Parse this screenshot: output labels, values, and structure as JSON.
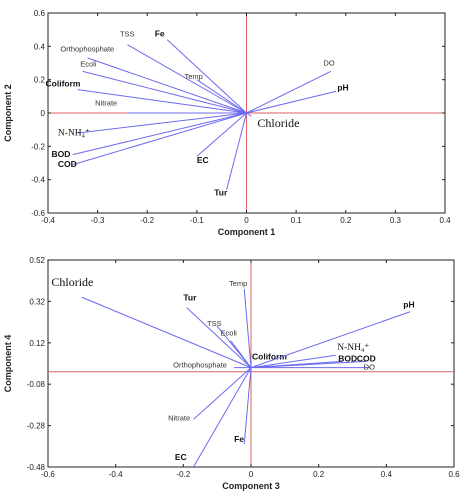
{
  "chart_data": [
    {
      "type": "biplot",
      "xlabel": "Component 1",
      "ylabel": "Component 2",
      "xlim": [
        -0.4,
        0.4
      ],
      "ylim": [
        -0.6,
        0.6
      ],
      "xticks": [
        -0.4,
        -0.3,
        -0.2,
        -0.1,
        0,
        0.1,
        0.2,
        0.3,
        0.4
      ],
      "yticks": [
        -0.6,
        -0.4,
        -0.2,
        0,
        0.2,
        0.4,
        0.6
      ],
      "tick_labels_x": [
        "-0.4",
        "-0.3",
        "-0.2",
        "-0.1",
        "0",
        "0.1",
        "0.2",
        "0.3",
        "0.4"
      ],
      "tick_labels_y": [
        "-0.6",
        "-0.4",
        "-0.2",
        "0",
        "0.2",
        "0.4",
        "0.6"
      ],
      "line_color": "#6b6bf0",
      "axis_color": "#e06060",
      "vectors": [
        {
          "label": "Fe",
          "x": -0.16,
          "y": 0.44,
          "style": "bold",
          "lx": -0.185,
          "ly": 0.46
        },
        {
          "label": "TSS",
          "x": -0.24,
          "y": 0.41,
          "style": "normal",
          "lx": -0.255,
          "ly": 0.46
        },
        {
          "label": "Orthophosphate",
          "x": -0.32,
          "y": 0.33,
          "style": "normal",
          "lx": -0.375,
          "ly": 0.37
        },
        {
          "label": "Ecoli",
          "x": -0.33,
          "y": 0.25,
          "style": "normal",
          "lx": -0.335,
          "ly": 0.28
        },
        {
          "label": "Temp",
          "x": -0.1,
          "y": 0.2,
          "style": "normal",
          "lx": -0.125,
          "ly": 0.205
        },
        {
          "label": "Coliform",
          "x": -0.34,
          "y": 0.14,
          "style": "bold",
          "lx": -0.405,
          "ly": 0.16
        },
        {
          "label": "Nitrate",
          "x": -0.24,
          "y": 0.0,
          "style": "normal",
          "lx": -0.305,
          "ly": 0.045
        },
        {
          "label": "DO",
          "x": 0.17,
          "y": 0.25,
          "style": "normal",
          "lx": 0.155,
          "ly": 0.285
        },
        {
          "label": "pH",
          "x": 0.18,
          "y": 0.13,
          "style": "bold",
          "lx": 0.183,
          "ly": 0.135
        },
        {
          "label": "Chloride",
          "x": 0.01,
          "y": -0.02,
          "style": "serif",
          "lx": 0.022,
          "ly": -0.085
        },
        {
          "label": "N-NH₄⁺",
          "x": -0.34,
          "y": -0.12,
          "style": "serif-sm",
          "lx": -0.38,
          "ly": -0.135
        },
        {
          "label": "BOD",
          "x": -0.35,
          "y": -0.25,
          "style": "bold",
          "lx": -0.393,
          "ly": -0.265
        },
        {
          "label": "COD",
          "x": -0.35,
          "y": -0.31,
          "style": "bold",
          "lx": -0.38,
          "ly": -0.325
        },
        {
          "label": "EC",
          "x": -0.1,
          "y": -0.26,
          "style": "bold",
          "lx": -0.1,
          "ly": -0.3
        },
        {
          "label": "Tur",
          "x": -0.04,
          "y": -0.46,
          "style": "bold",
          "lx": -0.065,
          "ly": -0.495
        }
      ]
    },
    {
      "type": "biplot",
      "xlabel": "Component 3",
      "ylabel": "Component 4",
      "xlim": [
        -0.6,
        0.6
      ],
      "ylim": [
        -0.48,
        0.52
      ],
      "xticks": [
        -0.6,
        -0.4,
        -0.2,
        0,
        0.2,
        0.4,
        0.6
      ],
      "yticks": [
        -0.48,
        -0.28,
        -0.08,
        0.12,
        0.32,
        0.52
      ],
      "tick_labels_x": [
        "-0.6",
        "-0.4",
        "-0.2",
        "0",
        "0.2",
        "0.4",
        "0.6"
      ],
      "tick_labels_y": [
        "-0.48",
        "-0.28",
        "-0.08",
        "0.12",
        "0.32",
        "0.52"
      ],
      "baseline_y": -0.02,
      "line_color": "#6b6bf0",
      "axis_color": "#e06060",
      "vectors": [
        {
          "label": "Chloride",
          "x": -0.5,
          "y": 0.34,
          "style": "serif",
          "lx": -0.59,
          "ly": 0.395
        },
        {
          "label": "Tur",
          "x": -0.19,
          "y": 0.29,
          "style": "bold",
          "lx": -0.2,
          "ly": 0.325
        },
        {
          "label": "Temp",
          "x": -0.02,
          "y": 0.38,
          "style": "normal",
          "lx": -0.065,
          "ly": 0.395
        },
        {
          "label": "TSS",
          "x": -0.1,
          "y": 0.2,
          "style": "normal",
          "lx": -0.13,
          "ly": 0.2
        },
        {
          "label": "Ecoli",
          "x": -0.06,
          "y": 0.13,
          "style": "normal",
          "lx": -0.09,
          "ly": 0.155
        },
        {
          "label": "Coliform",
          "x": 0.0,
          "y": 0.03,
          "style": "bold",
          "lx": 0.003,
          "ly": 0.04
        },
        {
          "label": "Orthophosphate",
          "x": -0.05,
          "y": 0.0,
          "style": "normal",
          "lx": -0.23,
          "ly": 0.0
        },
        {
          "label": "pH",
          "x": 0.47,
          "y": 0.27,
          "style": "bold",
          "lx": 0.45,
          "ly": 0.29
        },
        {
          "label": "N-NH₄⁺",
          "x": 0.25,
          "y": 0.06,
          "style": "serif-sm",
          "lx": 0.255,
          "ly": 0.085
        },
        {
          "label": "BOD",
          "x": 0.27,
          "y": 0.03,
          "style": "bold",
          "lx": 0.258,
          "ly": 0.03
        },
        {
          "label": "COD",
          "x": 0.34,
          "y": 0.03,
          "style": "bold",
          "lx": 0.313,
          "ly": 0.03
        },
        {
          "label": "DO",
          "x": 0.35,
          "y": 0.0,
          "style": "normal",
          "lx": 0.333,
          "ly": -0.01
        },
        {
          "label": "Nitrate",
          "x": -0.17,
          "y": -0.25,
          "style": "normal",
          "lx": -0.245,
          "ly": -0.255
        },
        {
          "label": "Fe",
          "x": -0.02,
          "y": -0.37,
          "style": "bold",
          "lx": -0.05,
          "ly": -0.36
        },
        {
          "label": "EC",
          "x": -0.17,
          "y": -0.48,
          "style": "bold",
          "lx": -0.225,
          "ly": -0.445
        }
      ]
    }
  ]
}
